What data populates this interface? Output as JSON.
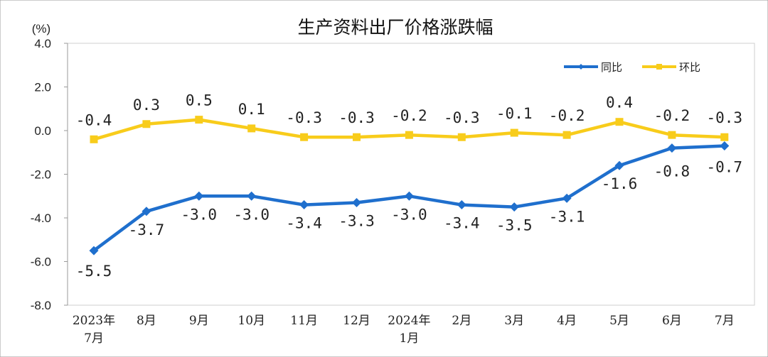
{
  "chart_data": {
    "type": "line",
    "title": "生产资料出厂价格涨跌幅",
    "unit_label": "(%)",
    "ylim": [
      -8.0,
      4.0
    ],
    "y_ticks": [
      "4.0",
      "2.0",
      "0.0",
      "-2.0",
      "-4.0",
      "-6.0",
      "-8.0"
    ],
    "y_tick_values": [
      4,
      2,
      0,
      -2,
      -4,
      -6,
      -8
    ],
    "categories": [
      [
        "2023年",
        "7月"
      ],
      [
        "8月"
      ],
      [
        "9月"
      ],
      [
        "10月"
      ],
      [
        "11月"
      ],
      [
        "12月"
      ],
      [
        "2024年",
        "1月"
      ],
      [
        "2月"
      ],
      [
        "3月"
      ],
      [
        "4月"
      ],
      [
        "5月"
      ],
      [
        "6月"
      ],
      [
        "7月"
      ]
    ],
    "grid": false,
    "legend_position": "top-right",
    "series": [
      {
        "name": "同比",
        "color": "#1f6fcd",
        "marker": "diamond",
        "values": [
          -5.5,
          -3.7,
          -3.0,
          -3.0,
          -3.4,
          -3.3,
          -3.0,
          -3.4,
          -3.5,
          -3.1,
          -1.6,
          -0.8,
          -0.7
        ],
        "labels": [
          "-5.5",
          "-3.7",
          "-3.0",
          "-3.0",
          "-3.4",
          "-3.3",
          "-3.0",
          "-3.4",
          "-3.5",
          "-3.1",
          "-1.6",
          "-0.8",
          "-0.7"
        ]
      },
      {
        "name": "环比",
        "color": "#f8cc1b",
        "marker": "square",
        "values": [
          -0.4,
          0.3,
          0.5,
          0.1,
          -0.3,
          -0.3,
          -0.2,
          -0.3,
          -0.1,
          -0.2,
          0.4,
          -0.2,
          -0.3
        ],
        "labels": [
          "-0.4",
          "0.3",
          "0.5",
          "0.1",
          "-0.3",
          "-0.3",
          "-0.2",
          "-0.3",
          "-0.1",
          "-0.2",
          "0.4",
          "-0.2",
          "-0.3"
        ]
      }
    ]
  }
}
